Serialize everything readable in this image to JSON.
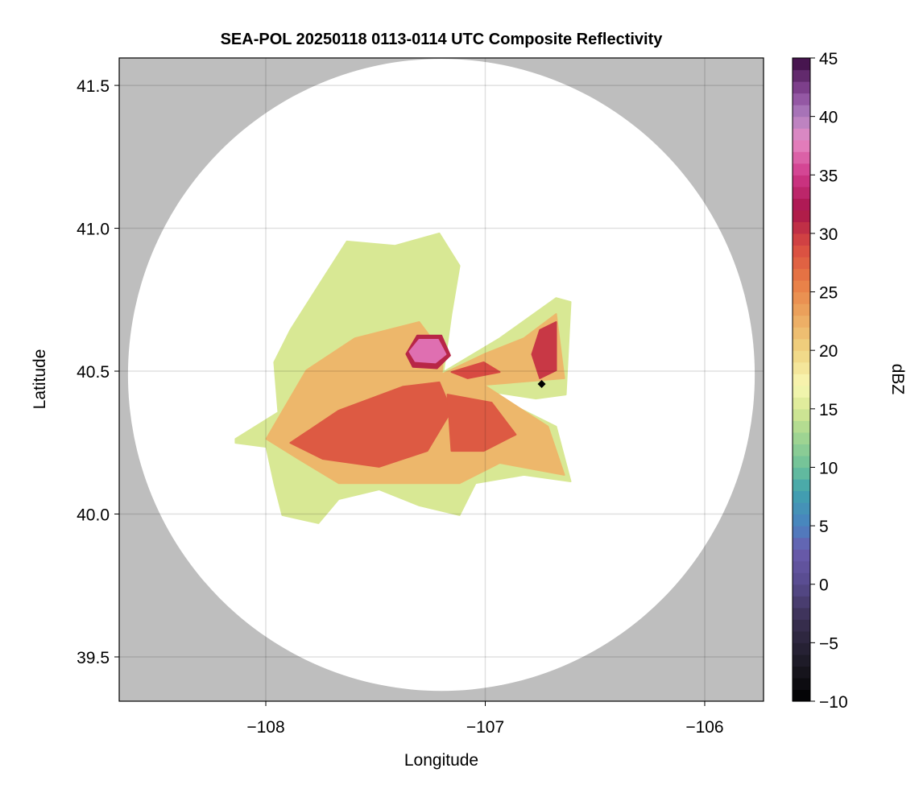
{
  "chart_data": {
    "type": "heatmap",
    "title": "SEA-POL 20250118 0113-0114 UTC Composite Reflectivity",
    "xlabel": "Longitude",
    "ylabel": "Latitude",
    "xlim": [
      -108.668,
      -105.732
    ],
    "ylim": [
      39.345,
      41.596
    ],
    "xticks": [
      -108,
      -107,
      -106
    ],
    "xtick_labels": [
      "−108",
      "−107",
      "−106"
    ],
    "yticks": [
      39.5,
      40.0,
      40.5,
      41.0,
      41.5
    ],
    "ytick_labels": [
      "39.5",
      "40.0",
      "40.5",
      "41.0",
      "41.5"
    ],
    "grid": true,
    "background_color": "#bebebe",
    "radar_coverage": {
      "center_lon": -107.2,
      "center_lat": 40.487,
      "radius_lon_deg": 1.428,
      "radius_lat_deg": 1.106,
      "color": "#ffffff"
    },
    "colorbar": {
      "label": "dBZ",
      "range": [
        -10,
        45
      ],
      "step": 1,
      "ticks": [
        -10,
        -5,
        0,
        5,
        10,
        15,
        20,
        25,
        30,
        35,
        40,
        45
      ],
      "tick_labels": [
        "−10",
        "−5",
        "0",
        "5",
        "10",
        "15",
        "20",
        "25",
        "30",
        "35",
        "40",
        "45"
      ],
      "colormap": [
        [
          -10,
          "#000000"
        ],
        [
          -7,
          "#1a1822"
        ],
        [
          -3,
          "#3a3052"
        ],
        [
          0,
          "#574a8c"
        ],
        [
          3,
          "#6a5cae"
        ],
        [
          5,
          "#4a82c0"
        ],
        [
          8,
          "#40a2ae"
        ],
        [
          10,
          "#6cc09a"
        ],
        [
          13,
          "#a8d890"
        ],
        [
          15,
          "#d8e894"
        ],
        [
          17,
          "#f8f8b4"
        ],
        [
          20,
          "#f0d482"
        ],
        [
          23,
          "#eca860"
        ],
        [
          26,
          "#e87a44"
        ],
        [
          29,
          "#d84a42"
        ],
        [
          32,
          "#a8144a"
        ],
        [
          35,
          "#d0388a"
        ],
        [
          38,
          "#e68ac4"
        ],
        [
          40,
          "#b080c0"
        ],
        [
          42,
          "#8a4a9a"
        ],
        [
          45,
          "#3a0a40"
        ]
      ]
    },
    "echo_regions": [
      {
        "dbz": 15,
        "lonlat": [
          [
            -108.138,
            40.263
          ],
          [
            -107.943,
            40.356
          ],
          [
            -107.962,
            40.531
          ],
          [
            -107.888,
            40.644
          ],
          [
            -107.76,
            40.799
          ],
          [
            -107.631,
            40.954
          ],
          [
            -107.411,
            40.939
          ],
          [
            -107.209,
            40.982
          ],
          [
            -107.117,
            40.869
          ],
          [
            -107.154,
            40.7
          ],
          [
            -107.191,
            40.497
          ],
          [
            -106.934,
            40.615
          ],
          [
            -106.677,
            40.756
          ],
          [
            -106.611,
            40.742
          ],
          [
            -106.633,
            40.418
          ],
          [
            -106.769,
            40.404
          ],
          [
            -107.007,
            40.432
          ],
          [
            -106.677,
            40.306
          ],
          [
            -106.611,
            40.114
          ],
          [
            -106.824,
            40.137
          ],
          [
            -107.044,
            40.108
          ],
          [
            -107.117,
            39.996
          ],
          [
            -107.301,
            40.03
          ],
          [
            -107.484,
            40.086
          ],
          [
            -107.668,
            40.052
          ],
          [
            -107.76,
            39.968
          ],
          [
            -107.925,
            39.996
          ],
          [
            -107.962,
            40.108
          ],
          [
            -107.998,
            40.235
          ],
          [
            -108.138,
            40.249
          ]
        ]
      },
      {
        "dbz": 22,
        "lonlat": [
          [
            -107.998,
            40.263
          ],
          [
            -107.815,
            40.503
          ],
          [
            -107.594,
            40.615
          ],
          [
            -107.301,
            40.672
          ],
          [
            -107.191,
            40.559
          ],
          [
            -107.198,
            40.489
          ],
          [
            -107.007,
            40.559
          ],
          [
            -106.824,
            40.615
          ],
          [
            -106.677,
            40.7
          ],
          [
            -106.64,
            40.475
          ],
          [
            -107.007,
            40.452
          ],
          [
            -106.714,
            40.306
          ],
          [
            -106.64,
            40.137
          ],
          [
            -106.934,
            40.179
          ],
          [
            -107.117,
            40.108
          ],
          [
            -107.374,
            40.108
          ],
          [
            -107.668,
            40.108
          ],
          [
            -107.851,
            40.193
          ]
        ]
      },
      {
        "dbz": 28,
        "lonlat": [
          [
            -107.888,
            40.249
          ],
          [
            -107.668,
            40.362
          ],
          [
            -107.374,
            40.446
          ],
          [
            -107.209,
            40.461
          ],
          [
            -107.154,
            40.362
          ],
          [
            -107.264,
            40.221
          ],
          [
            -107.484,
            40.165
          ],
          [
            -107.741,
            40.193
          ]
        ]
      },
      {
        "dbz": 28,
        "lonlat": [
          [
            -107.172,
            40.418
          ],
          [
            -106.971,
            40.39
          ],
          [
            -106.861,
            40.278
          ],
          [
            -107.007,
            40.221
          ],
          [
            -107.154,
            40.221
          ]
        ]
      },
      {
        "dbz": 29,
        "lonlat": [
          [
            -107.154,
            40.497
          ],
          [
            -107.007,
            40.531
          ],
          [
            -106.934,
            40.497
          ],
          [
            -107.08,
            40.475
          ]
        ]
      },
      {
        "dbz": 30,
        "lonlat": [
          [
            -106.751,
            40.644
          ],
          [
            -106.677,
            40.672
          ],
          [
            -106.677,
            40.503
          ],
          [
            -106.751,
            40.475
          ],
          [
            -106.787,
            40.559
          ]
        ]
      },
      {
        "dbz": 31,
        "lonlat": [
          [
            -107.36,
            40.56
          ],
          [
            -107.31,
            40.625
          ],
          [
            -107.2,
            40.625
          ],
          [
            -107.16,
            40.555
          ],
          [
            -107.22,
            40.51
          ],
          [
            -107.33,
            40.515
          ]
        ]
      },
      {
        "dbz": 37,
        "lonlat": [
          [
            -107.345,
            40.568
          ],
          [
            -107.301,
            40.61
          ],
          [
            -107.215,
            40.61
          ],
          [
            -107.18,
            40.559
          ],
          [
            -107.227,
            40.53
          ],
          [
            -107.319,
            40.535
          ]
        ]
      }
    ],
    "marker": {
      "lon": -106.743,
      "lat": 40.455,
      "shape": "diamond",
      "color": "#000000"
    }
  }
}
